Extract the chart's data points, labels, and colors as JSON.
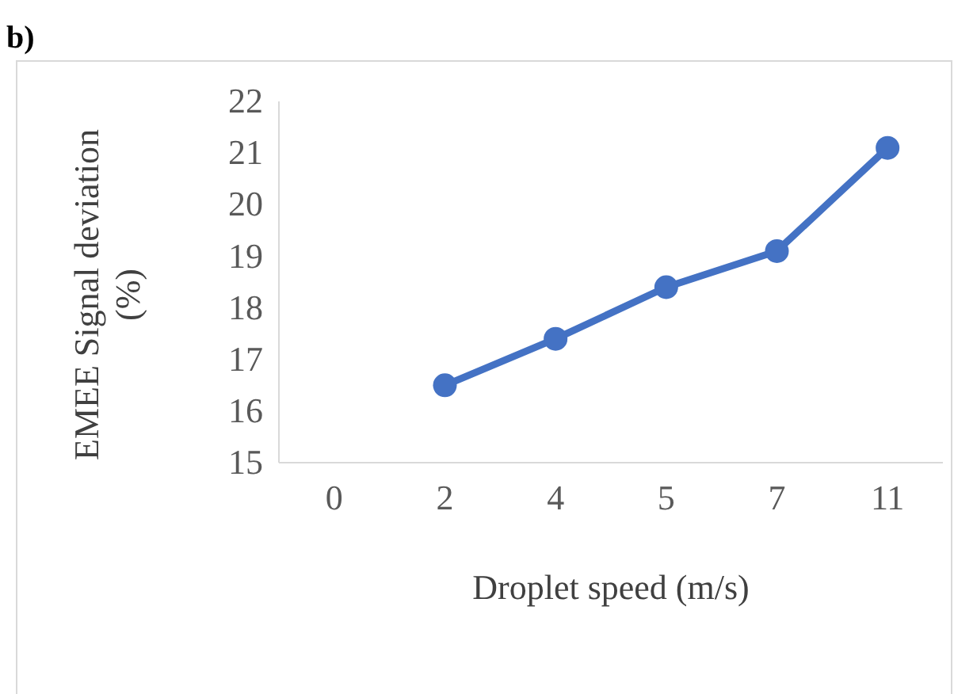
{
  "chart_data": {
    "type": "line",
    "title": "b)",
    "xlabel": "Droplet speed (m/s)",
    "ylabel": "EMEE Signal deviation (%)",
    "categories": [
      "0",
      "2",
      "4",
      "5",
      "7",
      "11"
    ],
    "series": [
      {
        "color": "#4472c4",
        "values": [
          null,
          16.5,
          17.4,
          18.4,
          19.1,
          21.1
        ]
      }
    ],
    "ylim": [
      15,
      22
    ],
    "yticks": [
      15,
      16,
      17,
      18,
      19,
      20,
      21,
      22
    ],
    "grid": false,
    "marker": "circle",
    "line_style": "solid"
  }
}
